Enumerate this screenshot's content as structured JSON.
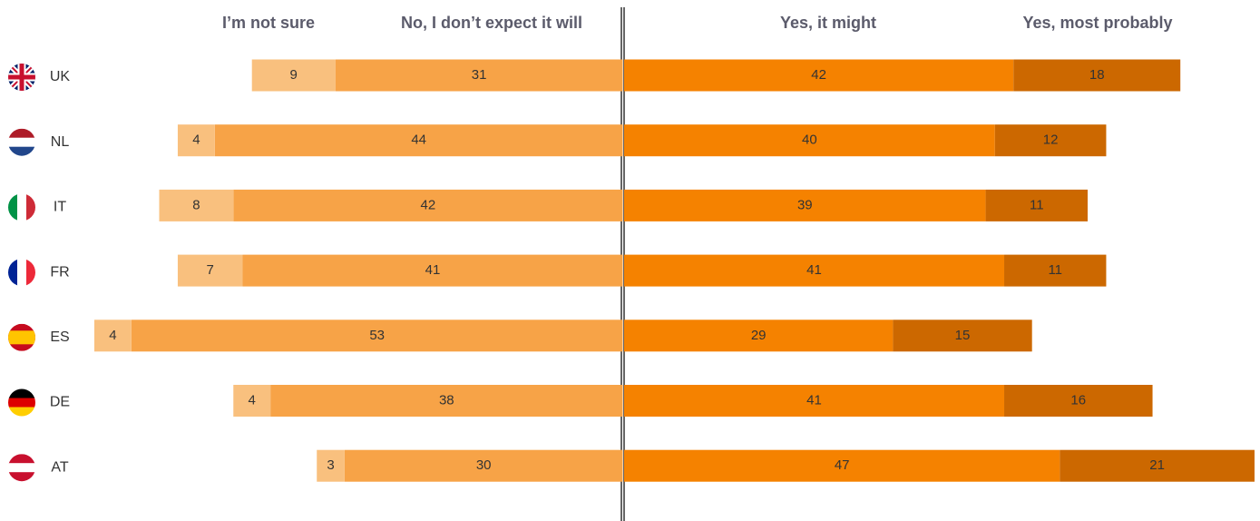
{
  "chart_data": {
    "type": "diverging_bar",
    "categories": [
      "UK",
      "NL",
      "IT",
      "FR",
      "ES",
      "DE",
      "AT"
    ],
    "series": [
      {
        "name": "I’m not sure",
        "color": "#f9c07e",
        "values": [
          9,
          4,
          8,
          7,
          4,
          4,
          3
        ]
      },
      {
        "name": "No, I don’t expect it will",
        "color": "#f7a347",
        "values": [
          31,
          44,
          42,
          41,
          53,
          38,
          30
        ]
      },
      {
        "name": "Yes, it might",
        "color": "#f58200",
        "values": [
          42,
          40,
          39,
          41,
          29,
          41,
          47
        ]
      },
      {
        "name": "Yes, most probably",
        "color": "#cc6800",
        "values": [
          18,
          12,
          11,
          11,
          15,
          16,
          21
        ]
      }
    ]
  }
}
